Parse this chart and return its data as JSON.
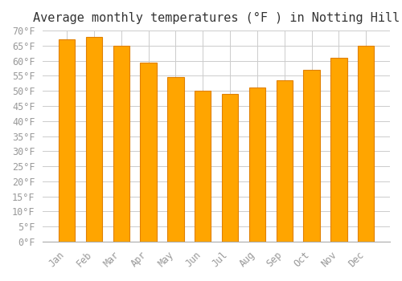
{
  "title": "Average monthly temperatures (°F ) in Notting Hill",
  "months": [
    "Jan",
    "Feb",
    "Mar",
    "Apr",
    "May",
    "Jun",
    "Jul",
    "Aug",
    "Sep",
    "Oct",
    "Nov",
    "Dec"
  ],
  "values": [
    67,
    68,
    65,
    59.5,
    54.5,
    50,
    49,
    51,
    53.5,
    57,
    61,
    65
  ],
  "bar_color": "#FFA500",
  "bar_edge_color": "#E08000",
  "ylim": [
    0,
    70
  ],
  "yticks": [
    0,
    5,
    10,
    15,
    20,
    25,
    30,
    35,
    40,
    45,
    50,
    55,
    60,
    65,
    70
  ],
  "background_color": "#FFFFFF",
  "grid_color": "#CCCCCC",
  "title_fontsize": 11,
  "tick_fontsize": 8.5,
  "tick_font_color": "#999999"
}
